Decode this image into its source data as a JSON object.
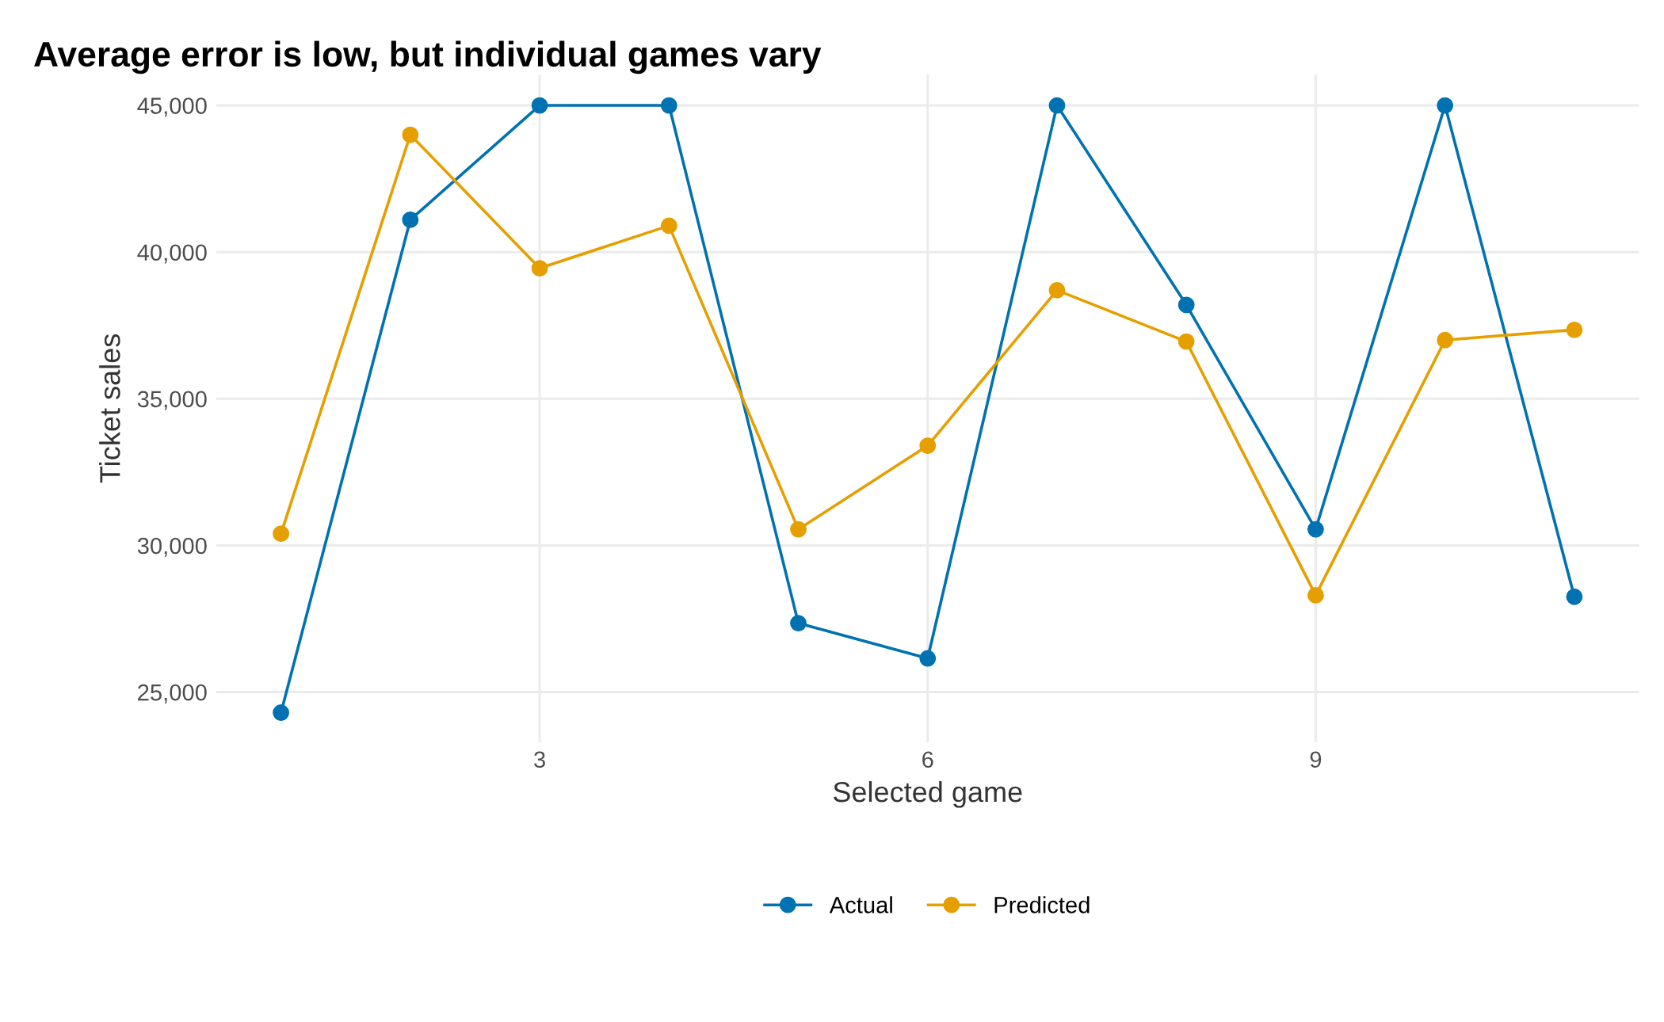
{
  "chart_data": {
    "type": "line",
    "title": "Average error is low, but individual games vary",
    "xlabel": "Selected game",
    "ylabel": "Ticket sales",
    "x": [
      1,
      2,
      3,
      4,
      5,
      6,
      7,
      8,
      9,
      10,
      11
    ],
    "series": [
      {
        "name": "Actual",
        "color": "#0072b2",
        "values": [
          24300,
          41100,
          45000,
          45000,
          27350,
          26150,
          45000,
          38200,
          30550,
          45000,
          28250
        ]
      },
      {
        "name": "Predicted",
        "color": "#e69f00",
        "values": [
          30400,
          44000,
          39450,
          40900,
          30550,
          33400,
          38700,
          36950,
          28300,
          37000,
          37350
        ]
      }
    ],
    "xlim": [
      0.5,
      11.5
    ],
    "xticks": [
      3,
      6,
      9
    ],
    "ylim": [
      23300,
      46050
    ],
    "yticks": [
      {
        "value": 25000,
        "label": "25,000"
      },
      {
        "value": 30000,
        "label": "30,000"
      },
      {
        "value": 35000,
        "label": "35,000"
      },
      {
        "value": 40000,
        "label": "40,000"
      },
      {
        "value": 45000,
        "label": "45,000"
      }
    ],
    "grid": true,
    "legend": "bottom",
    "marker": "circle",
    "line_style": "solid"
  }
}
